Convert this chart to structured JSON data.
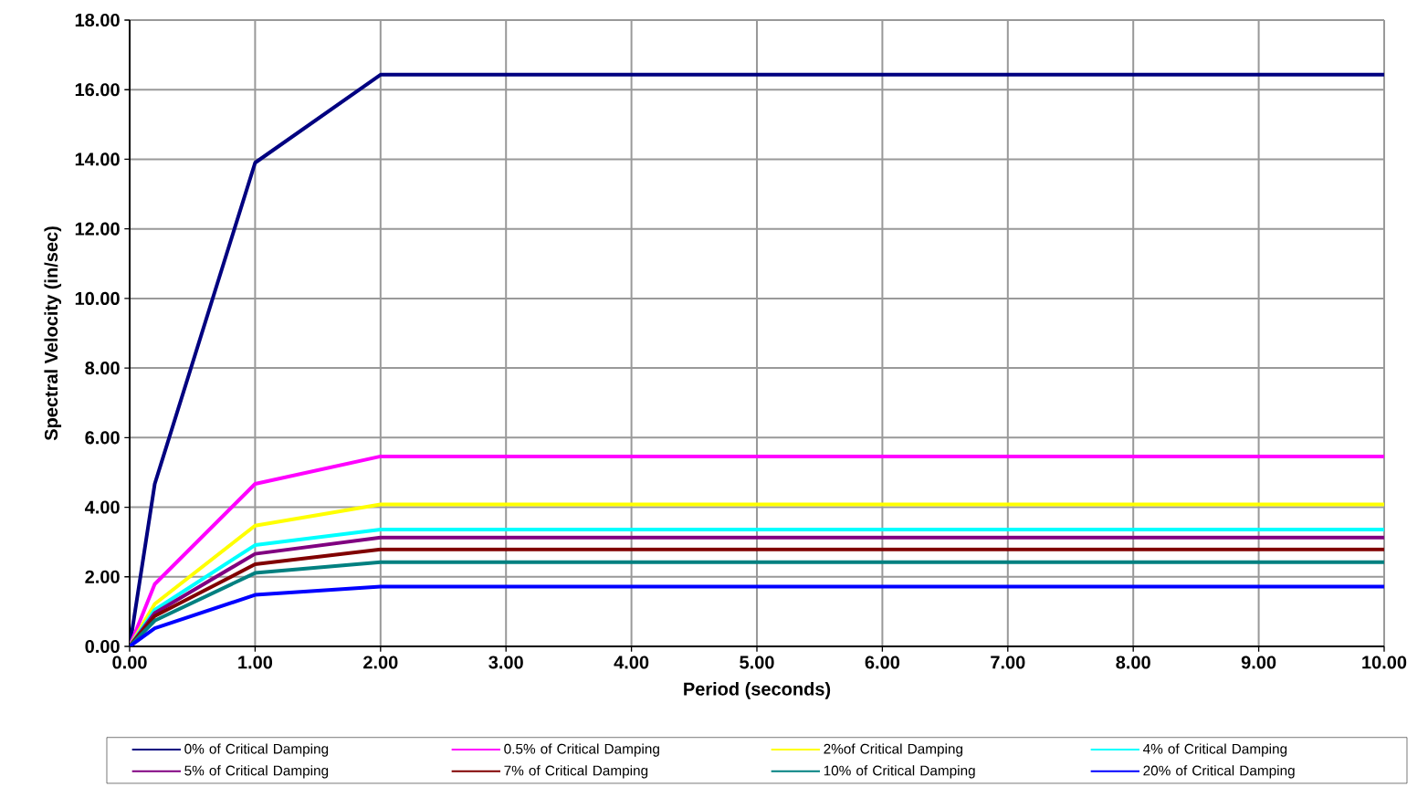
{
  "chart_data": {
    "type": "line",
    "xlabel": "Period (seconds)",
    "ylabel": "Spectral Velocity (in/sec)",
    "x": [
      0,
      0.2,
      1,
      2,
      10
    ],
    "series": [
      {
        "name": "0% of Critical Damping",
        "color": "#000080",
        "values": [
          0,
          4.67,
          13.9,
          16.43,
          16.43
        ]
      },
      {
        "name": "0.5% of Critical Damping",
        "color": "#ff00ff",
        "values": [
          0,
          1.79,
          4.67,
          5.46,
          5.46
        ]
      },
      {
        "name": "2%of  Critical Damping",
        "color": "#ffff00",
        "values": [
          0,
          1.22,
          3.47,
          4.08,
          4.08
        ]
      },
      {
        "name": "4% of  Critical Damping",
        "color": "#00ffff",
        "values": [
          0,
          1.05,
          2.91,
          3.36,
          3.36
        ]
      },
      {
        "name": "5% of Critical Damping",
        "color": "#800080",
        "values": [
          0,
          0.96,
          2.66,
          3.13,
          3.13
        ]
      },
      {
        "name": "7% of Critical Damping",
        "color": "#800000",
        "values": [
          0,
          0.87,
          2.36,
          2.79,
          2.79
        ]
      },
      {
        "name": "10% of Critical Damping",
        "color": "#008080",
        "values": [
          0,
          0.74,
          2.11,
          2.42,
          2.42
        ]
      },
      {
        "name": "20% of Critical Damping",
        "color": "#0000ff",
        "values": [
          0,
          0.52,
          1.48,
          1.72,
          1.72
        ]
      }
    ],
    "xlim": [
      0,
      10
    ],
    "ylim": [
      0,
      18
    ],
    "xticks": [
      {
        "value": 0,
        "label": "0.00"
      },
      {
        "value": 1,
        "label": "1.00"
      },
      {
        "value": 2,
        "label": "2.00"
      },
      {
        "value": 3,
        "label": "3.00"
      },
      {
        "value": 4,
        "label": "4.00"
      },
      {
        "value": 5,
        "label": "5.00"
      },
      {
        "value": 6,
        "label": "6.00"
      },
      {
        "value": 7,
        "label": "7.00"
      },
      {
        "value": 8,
        "label": "8.00"
      },
      {
        "value": 9,
        "label": "9.00"
      },
      {
        "value": 10,
        "label": "10.00"
      }
    ],
    "yticks": [
      {
        "value": 0,
        "label": "0.00"
      },
      {
        "value": 2,
        "label": "2.00"
      },
      {
        "value": 4,
        "label": "4.00"
      },
      {
        "value": 6,
        "label": "6.00"
      },
      {
        "value": 8,
        "label": "8.00"
      },
      {
        "value": 10,
        "label": "10.00"
      },
      {
        "value": 12,
        "label": "12.00"
      },
      {
        "value": 14,
        "label": "14.00"
      },
      {
        "value": 16,
        "label": "16.00"
      },
      {
        "value": 18,
        "label": "18.00"
      }
    ],
    "grid": true,
    "legend": "bottom",
    "marker": "none",
    "line_style": "solid"
  }
}
